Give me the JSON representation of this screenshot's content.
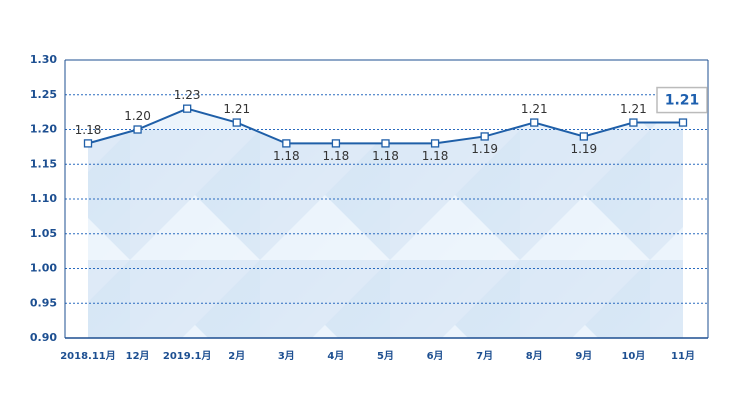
{
  "chart_data": {
    "type": "line",
    "categories": [
      "2018.11月",
      "12月",
      "2019.1月",
      "2月",
      "3月",
      "4月",
      "5月",
      "6月",
      "7月",
      "8月",
      "9月",
      "10月",
      "11月"
    ],
    "series": [
      {
        "name": null,
        "color": "#1f5fa8",
        "values": [
          1.18,
          1.2,
          1.23,
          1.21,
          1.18,
          1.18,
          1.18,
          1.18,
          1.19,
          1.21,
          1.19,
          1.21,
          1.21
        ],
        "value_labels": [
          "1.18",
          "1.20",
          "1.23",
          "1.21",
          "1.18",
          "1.18",
          "1.18",
          "1.18",
          "1.19",
          "1.21",
          "1.19",
          "1.21",
          "1.21"
        ]
      }
    ],
    "ylim": [
      0.9,
      1.3
    ],
    "yticks": [
      {
        "value": 0.9,
        "label": "0.90"
      },
      0.95,
      {
        "value": 1.0,
        "label": "1.00"
      },
      1.05,
      {
        "value": 1.1,
        "label": "1.10"
      },
      1.15,
      {
        "value": 1.2,
        "label": "1.20"
      },
      1.25,
      {
        "value": 1.3,
        "label": "1.30"
      }
    ],
    "grid": true
  }
}
